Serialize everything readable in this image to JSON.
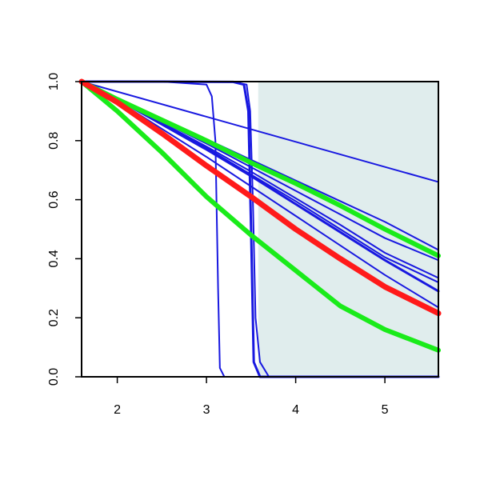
{
  "chart_data": {
    "type": "line",
    "title": "",
    "xlabel": "",
    "ylabel": "",
    "xlim": [
      1.6,
      5.6
    ],
    "ylim": [
      0.0,
      1.0
    ],
    "x_ticks": [
      2,
      3,
      4,
      5
    ],
    "y_ticks": [
      0.0,
      0.2,
      0.4,
      0.6,
      0.8,
      1.0
    ],
    "x_tick_labels": [
      "2",
      "3",
      "4",
      "5"
    ],
    "y_tick_labels": [
      "0.0",
      "0.2",
      "0.4",
      "0.6",
      "0.8",
      "1.0"
    ],
    "grid": false,
    "legend": "none",
    "shaded_region": {
      "x": [
        3.58,
        5.6
      ],
      "color": "#e0eded"
    },
    "colors": {
      "blue": "#1818e0",
      "green": "#1aeb1a",
      "red": "#ff1a1a"
    },
    "series": [
      {
        "color": "blue",
        "width": 2,
        "x": [
          1.6,
          5.6
        ],
        "y": [
          1.0,
          0.66
        ]
      },
      {
        "color": "blue",
        "width": 2,
        "x": [
          1.6,
          2.0,
          2.5,
          3.0,
          3.5,
          4.0,
          4.5,
          5.0,
          5.6
        ],
        "y": [
          1.0,
          0.945,
          0.875,
          0.805,
          0.735,
          0.665,
          0.595,
          0.525,
          0.43
        ]
      },
      {
        "color": "blue",
        "width": 2,
        "x": [
          1.6,
          2.0,
          2.5,
          3.0,
          3.5,
          4.0,
          4.5,
          5.0,
          5.6
        ],
        "y": [
          1.0,
          0.94,
          0.865,
          0.79,
          0.71,
          0.63,
          0.55,
          0.47,
          0.395
        ]
      },
      {
        "color": "blue",
        "width": 2,
        "x": [
          1.6,
          2.0,
          2.5,
          3.0,
          3.5,
          4.0,
          4.5,
          5.0,
          5.6
        ],
        "y": [
          1.0,
          0.94,
          0.86,
          0.78,
          0.695,
          0.605,
          0.515,
          0.42,
          0.335
        ]
      },
      {
        "color": "blue",
        "width": 2,
        "x": [
          1.6,
          2.0,
          2.5,
          3.0,
          3.5,
          4.0,
          4.5,
          5.0,
          5.6
        ],
        "y": [
          1.0,
          0.94,
          0.86,
          0.775,
          0.685,
          0.595,
          0.5,
          0.405,
          0.32
        ]
      },
      {
        "color": "blue",
        "width": 3,
        "x": [
          1.6,
          2.0,
          2.5,
          3.0,
          3.5,
          4.0,
          4.5,
          5.0,
          5.6
        ],
        "y": [
          1.0,
          0.94,
          0.855,
          0.77,
          0.68,
          0.585,
          0.49,
          0.395,
          0.29
        ]
      },
      {
        "color": "blue",
        "width": 2,
        "x": [
          1.6,
          2.0,
          2.5,
          3.0,
          3.5,
          4.0,
          4.5,
          5.0,
          5.6
        ],
        "y": [
          1.0,
          0.935,
          0.84,
          0.745,
          0.645,
          0.545,
          0.445,
          0.345,
          0.235
        ]
      },
      {
        "color": "blue",
        "width": 2,
        "x": [
          1.6,
          2.5,
          3.0,
          3.06,
          3.1,
          3.13,
          3.15,
          3.2,
          5.6
        ],
        "y": [
          1.0,
          1.0,
          0.99,
          0.95,
          0.8,
          0.3,
          0.03,
          0.0,
          0.0
        ]
      },
      {
        "color": "blue",
        "width": 3,
        "x": [
          1.6,
          2.5,
          3.3,
          3.42,
          3.47,
          3.5,
          3.53,
          3.6,
          5.6
        ],
        "y": [
          1.0,
          1.0,
          0.999,
          0.99,
          0.9,
          0.5,
          0.05,
          0.0,
          0.0
        ]
      },
      {
        "color": "blue",
        "width": 2,
        "x": [
          1.6,
          2.5,
          3.3,
          3.45,
          3.49,
          3.52,
          3.55,
          3.6,
          3.7,
          5.6
        ],
        "y": [
          1.0,
          1.0,
          0.999,
          0.99,
          0.9,
          0.6,
          0.2,
          0.05,
          0.0,
          0.0
        ]
      },
      {
        "color": "green",
        "width": 6,
        "x": [
          1.6,
          2.0,
          2.5,
          3.0,
          3.5,
          4.0,
          4.5,
          5.0,
          5.6
        ],
        "y": [
          1.0,
          0.94,
          0.87,
          0.8,
          0.725,
          0.655,
          0.58,
          0.5,
          0.41
        ]
      },
      {
        "color": "green",
        "width": 6,
        "x": [
          1.6,
          2.0,
          2.5,
          3.0,
          3.5,
          4.0,
          4.5,
          5.0,
          5.6
        ],
        "y": [
          1.0,
          0.9,
          0.76,
          0.61,
          0.48,
          0.36,
          0.24,
          0.16,
          0.09
        ]
      },
      {
        "color": "red",
        "width": 7,
        "x": [
          1.6,
          2.0,
          2.5,
          3.0,
          3.5,
          4.0,
          4.5,
          5.0,
          5.6
        ],
        "y": [
          1.0,
          0.93,
          0.825,
          0.715,
          0.61,
          0.5,
          0.4,
          0.305,
          0.215
        ]
      }
    ]
  }
}
